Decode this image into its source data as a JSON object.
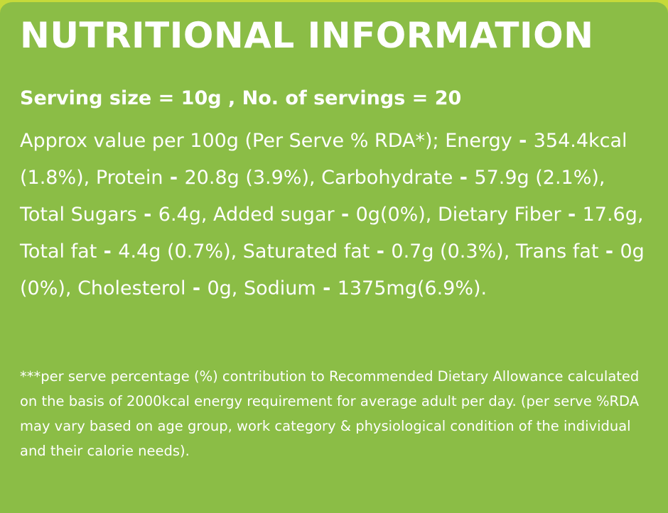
{
  "title": "NUTRITIONAL INFORMATION",
  "serving_line": "Serving size = 10g , No. of servings = 20",
  "intro": "Approx value per 100g (Per Serve % RDA*); Energy",
  "nutrients": [
    {
      "name": "",
      "value": "354.4kcal (1.8%), Protein"
    },
    {
      "name": "",
      "value": "20.8g (3.9%), Carbohydrate"
    },
    {
      "name": "",
      "value": "57.9g (2.1%), Total Sugars"
    },
    {
      "name": "",
      "value": "6.4g, Added sugar"
    },
    {
      "name": "",
      "value": "0g(0%), Dietary Fiber"
    },
    {
      "name": "",
      "value": "17.6g, Total fat"
    },
    {
      "name": "",
      "value": "4.4g (0.7%), Saturated fat"
    },
    {
      "name": "",
      "value": "0.7g (0.3%), Trans fat"
    },
    {
      "name": "",
      "value": "0g (0%), Cholesterol"
    },
    {
      "name": "",
      "value": "0g, Sodium"
    },
    {
      "name": "",
      "value": "1375mg(6.9%)."
    }
  ],
  "separator": " - ",
  "footnote": "***per serve percentage (%) contribution to Recommended Dietary Allowance calculated on the basis of 2000kcal energy requirement for average adult per day. (per serve %RDA may vary based on age group, work category & physiological condition of the individual and their calorie needs).",
  "colors": {
    "panel_background": "#8bbd46",
    "outer_background": "#c6da3a",
    "text": "#ffffff"
  }
}
